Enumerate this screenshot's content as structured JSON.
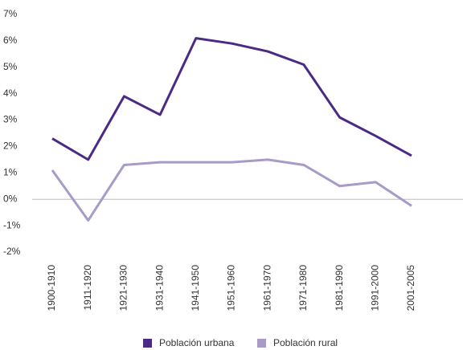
{
  "chart_data": {
    "type": "line",
    "categories": [
      "1900-1910",
      "1911-1920",
      "1921-1930",
      "1931-1940",
      "1941-1950",
      "1951-1960",
      "1961-1970",
      "1971-1980",
      "1981-1990",
      "1991-2000",
      "2001-2005"
    ],
    "series": [
      {
        "name": "Población urbana",
        "color": "#4b2a86",
        "values": [
          2.3,
          1.5,
          3.9,
          3.2,
          6.1,
          5.9,
          5.6,
          5.1,
          3.1,
          2.4,
          1.65
        ]
      },
      {
        "name": "Población rural",
        "color": "#a89bc8",
        "values": [
          1.1,
          -0.8,
          1.3,
          1.4,
          1.4,
          1.4,
          1.5,
          1.3,
          0.5,
          0.65,
          -0.25
        ]
      }
    ],
    "ylim": [
      -2,
      7
    ],
    "yticks": [
      {
        "value": -2,
        "label": "-2%"
      },
      {
        "value": -1,
        "label": "-1%"
      },
      {
        "value": 0,
        "label": "0%"
      },
      {
        "value": 1,
        "label": "1%"
      },
      {
        "value": 2,
        "label": "2%"
      },
      {
        "value": 3,
        "label": "3%"
      },
      {
        "value": 4,
        "label": "4%"
      },
      {
        "value": 5,
        "label": "5%"
      },
      {
        "value": 6,
        "label": "6%"
      },
      {
        "value": 7,
        "label": "7%"
      }
    ],
    "legend": "bottom"
  }
}
